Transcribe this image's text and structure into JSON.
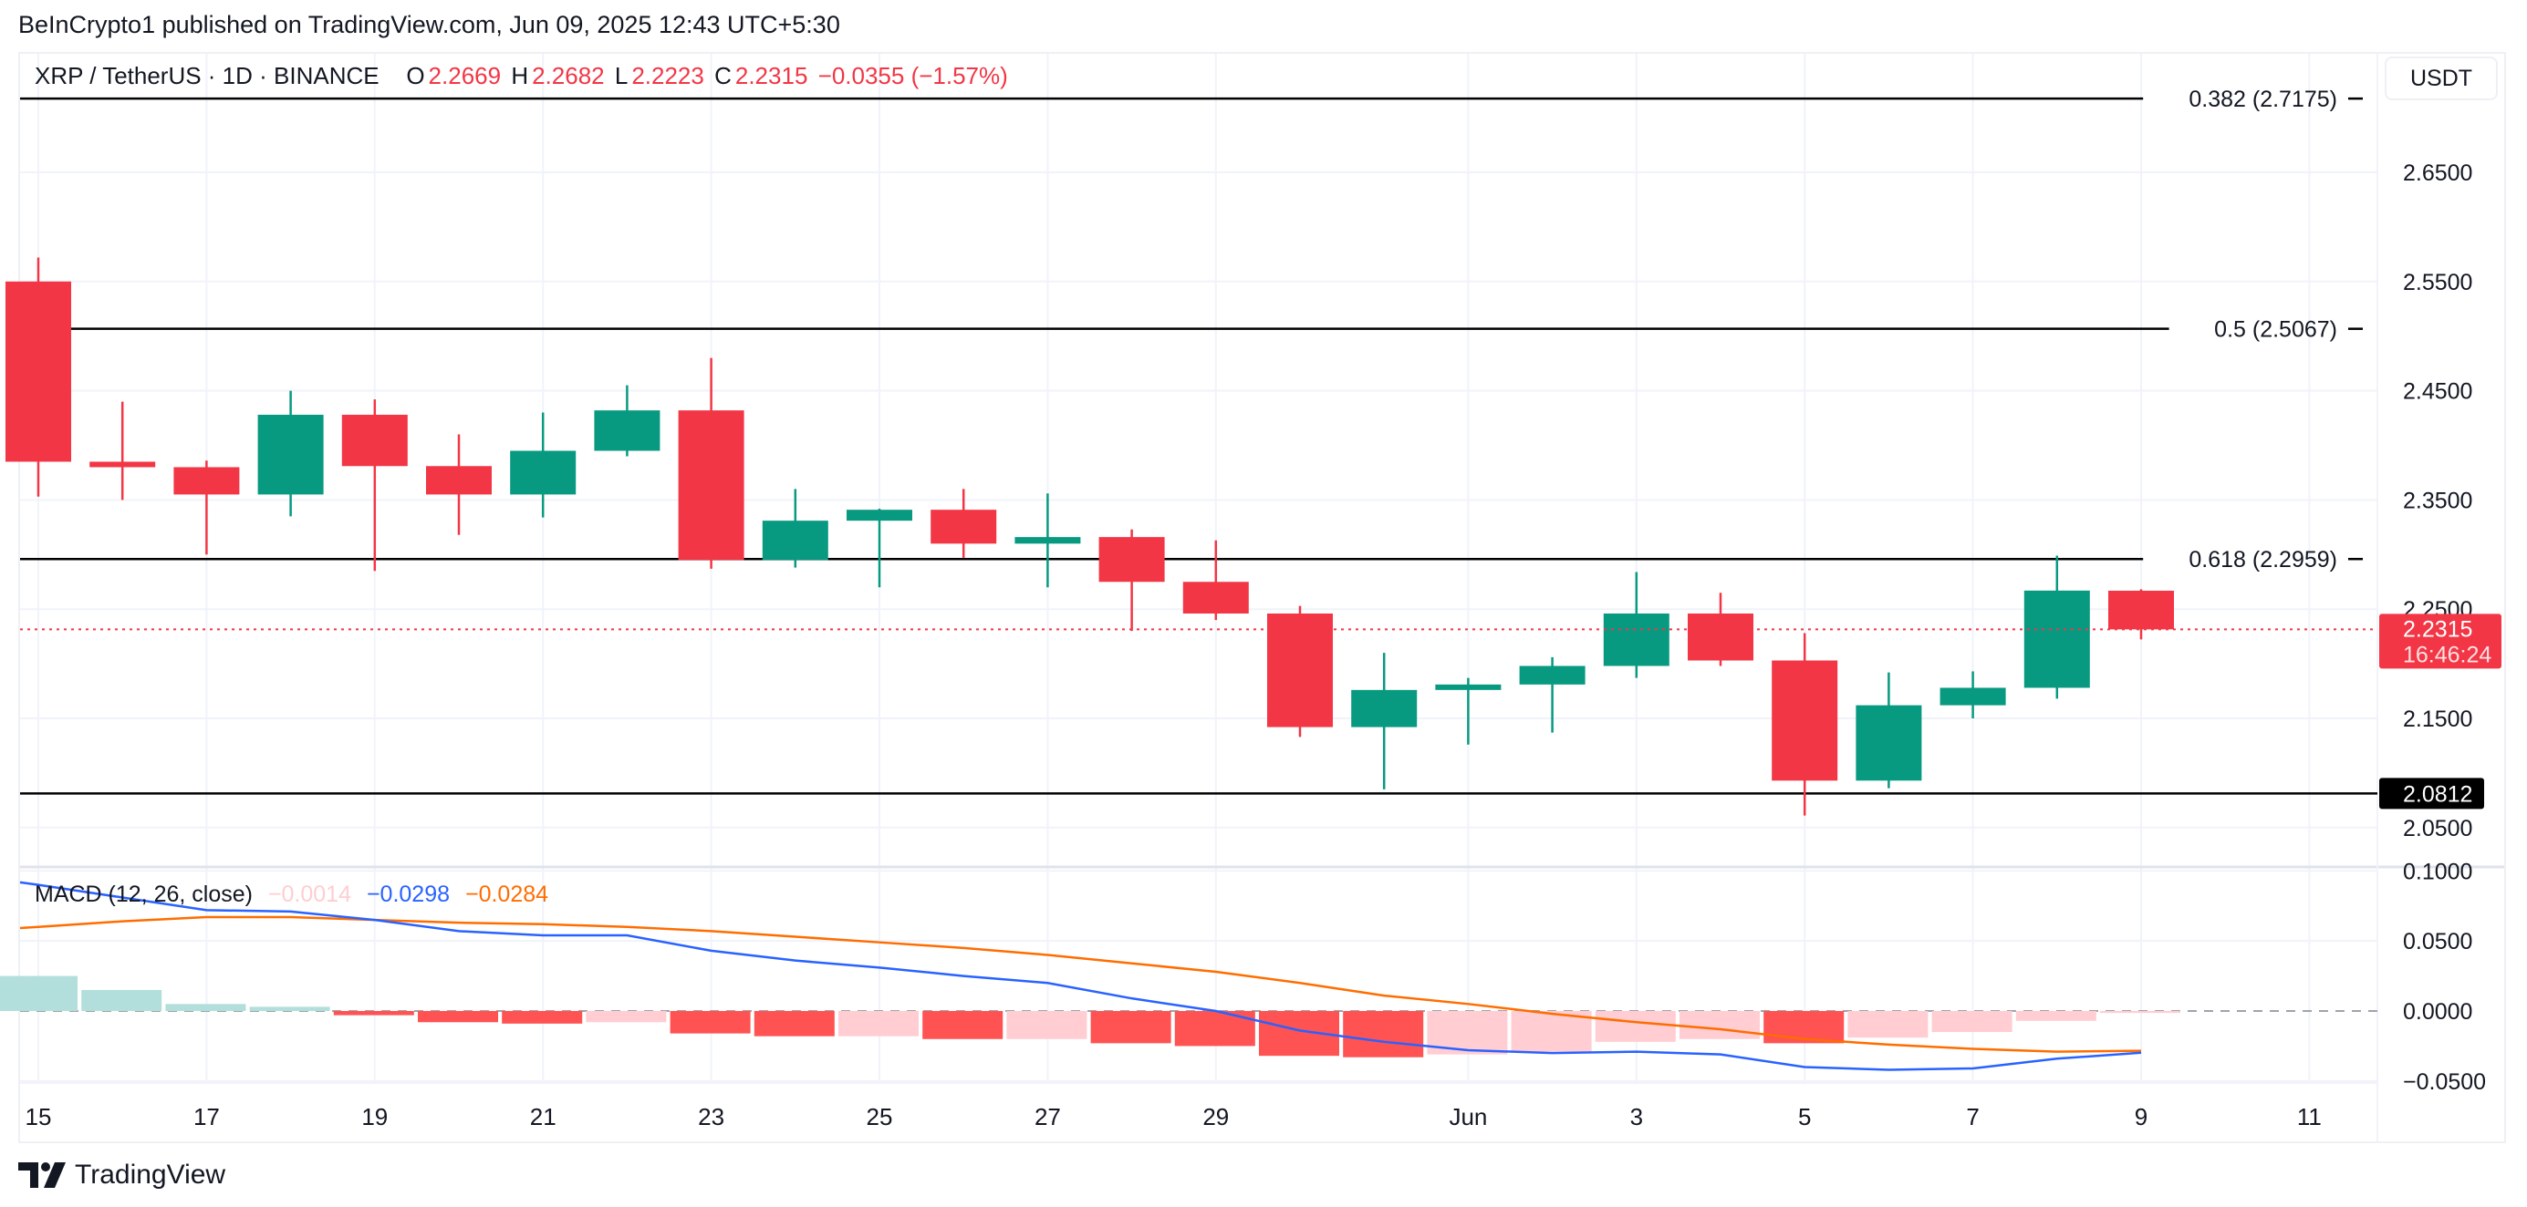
{
  "header": {
    "published": "BeInCrypto1 published on TradingView.com, Jun 09, 2025 12:43 UTC+5:30"
  },
  "legend": {
    "symbol": "XRP / TetherUS · 1D · BINANCE",
    "o_label": "O",
    "o": "2.2669",
    "h_label": "H",
    "h": "2.2682",
    "l_label": "L",
    "l": "2.2223",
    "c_label": "C",
    "c": "2.2315",
    "change": "−0.0355 (−1.57%)"
  },
  "currency_button": "USDT",
  "current_price": {
    "value": "2.2315",
    "countdown": "16:46:24"
  },
  "macd_legend": {
    "title": "MACD (12, 26, close)",
    "hist": "−0.0014",
    "macd": "−0.0298",
    "signal": "−0.0284"
  },
  "brand": {
    "name": "TradingView"
  },
  "colors": {
    "up": "#089981",
    "down": "#f23645",
    "macd": "#2962ff",
    "signal": "#ff6d00",
    "hist_up_fading": "#b2dfdb",
    "hist_down_growing": "#ff5252",
    "hist_down_fading": "#ffcdd2"
  },
  "chart_data": [
    {
      "type": "candlestick",
      "ylim": [
        2.02,
        2.75
      ],
      "y_ticks": [
        "2.6500",
        "2.5500",
        "2.4500",
        "2.3500",
        "2.2500",
        "2.1500",
        "2.0500"
      ],
      "grid": true,
      "x_ticks": [
        {
          "label": "15",
          "date": "2025-05-15"
        },
        {
          "label": "17",
          "date": "2025-05-17"
        },
        {
          "label": "19",
          "date": "2025-05-19"
        },
        {
          "label": "21",
          "date": "2025-05-21"
        },
        {
          "label": "23",
          "date": "2025-05-23"
        },
        {
          "label": "25",
          "date": "2025-05-25"
        },
        {
          "label": "27",
          "date": "2025-05-27"
        },
        {
          "label": "29",
          "date": "2025-05-29"
        },
        {
          "label": "Jun",
          "date": "2025-06-01"
        },
        {
          "label": "3",
          "date": "2025-06-03"
        },
        {
          "label": "5",
          "date": "2025-06-05"
        },
        {
          "label": "7",
          "date": "2025-06-07"
        },
        {
          "label": "9",
          "date": "2025-06-09"
        },
        {
          "label": "11",
          "date": "2025-06-11"
        }
      ],
      "candles": [
        {
          "date": "2025-05-15",
          "o": 2.55,
          "h": 2.572,
          "l": 2.353,
          "c": 2.385
        },
        {
          "date": "2025-05-16",
          "o": 2.385,
          "h": 2.44,
          "l": 2.35,
          "c": 2.38
        },
        {
          "date": "2025-05-17",
          "o": 2.38,
          "h": 2.386,
          "l": 2.3,
          "c": 2.355
        },
        {
          "date": "2025-05-18",
          "o": 2.355,
          "h": 2.45,
          "l": 2.335,
          "c": 2.428
        },
        {
          "date": "2025-05-19",
          "o": 2.428,
          "h": 2.442,
          "l": 2.285,
          "c": 2.381
        },
        {
          "date": "2025-05-20",
          "o": 2.381,
          "h": 2.41,
          "l": 2.318,
          "c": 2.355
        },
        {
          "date": "2025-05-21",
          "o": 2.355,
          "h": 2.43,
          "l": 2.334,
          "c": 2.395
        },
        {
          "date": "2025-05-22",
          "o": 2.395,
          "h": 2.455,
          "l": 2.39,
          "c": 2.432
        },
        {
          "date": "2025-05-23",
          "o": 2.432,
          "h": 2.48,
          "l": 2.287,
          "c": 2.295
        },
        {
          "date": "2025-05-24",
          "o": 2.295,
          "h": 2.36,
          "l": 2.288,
          "c": 2.331
        },
        {
          "date": "2025-05-25",
          "o": 2.331,
          "h": 2.342,
          "l": 2.27,
          "c": 2.341
        },
        {
          "date": "2025-05-26",
          "o": 2.341,
          "h": 2.36,
          "l": 2.297,
          "c": 2.31
        },
        {
          "date": "2025-05-27",
          "o": 2.31,
          "h": 2.356,
          "l": 2.27,
          "c": 2.316
        },
        {
          "date": "2025-05-28",
          "o": 2.316,
          "h": 2.323,
          "l": 2.23,
          "c": 2.275
        },
        {
          "date": "2025-05-29",
          "o": 2.275,
          "h": 2.313,
          "l": 2.24,
          "c": 2.246
        },
        {
          "date": "2025-05-30",
          "o": 2.246,
          "h": 2.253,
          "l": 2.133,
          "c": 2.142
        },
        {
          "date": "2025-05-31",
          "o": 2.142,
          "h": 2.21,
          "l": 2.085,
          "c": 2.176
        },
        {
          "date": "2025-06-01",
          "o": 2.176,
          "h": 2.187,
          "l": 2.126,
          "c": 2.181
        },
        {
          "date": "2025-06-02",
          "o": 2.181,
          "h": 2.206,
          "l": 2.137,
          "c": 2.198
        },
        {
          "date": "2025-06-03",
          "o": 2.198,
          "h": 2.284,
          "l": 2.187,
          "c": 2.246
        },
        {
          "date": "2025-06-04",
          "o": 2.246,
          "h": 2.265,
          "l": 2.198,
          "c": 2.203
        },
        {
          "date": "2025-06-05",
          "o": 2.203,
          "h": 2.228,
          "l": 2.061,
          "c": 2.093
        },
        {
          "date": "2025-06-06",
          "o": 2.093,
          "h": 2.192,
          "l": 2.086,
          "c": 2.162
        },
        {
          "date": "2025-06-07",
          "o": 2.162,
          "h": 2.193,
          "l": 2.15,
          "c": 2.178
        },
        {
          "date": "2025-06-08",
          "o": 2.178,
          "h": 2.299,
          "l": 2.168,
          "c": 2.267
        },
        {
          "date": "2025-06-09",
          "o": 2.2669,
          "h": 2.2682,
          "l": 2.2223,
          "c": 2.2315
        }
      ],
      "levels": [
        {
          "label": "0.382 (2.7175)",
          "price": 2.7175
        },
        {
          "label": "0.5 (2.5067)",
          "price": 2.5067
        },
        {
          "label": "0.618 (2.2959)",
          "price": 2.2959
        },
        {
          "label": "2.0812",
          "price": 2.0812,
          "axis_label": true
        }
      ]
    },
    {
      "type": "macd",
      "title": "MACD (12, 26, close)",
      "ylim": [
        -0.06,
        0.105
      ],
      "y_ticks": [
        "0.1000",
        "0.0500",
        "0.0000",
        "−0.0500"
      ],
      "dates": [
        "2025-05-15",
        "2025-05-16",
        "2025-05-17",
        "2025-05-18",
        "2025-05-19",
        "2025-05-20",
        "2025-05-21",
        "2025-05-22",
        "2025-05-23",
        "2025-05-24",
        "2025-05-25",
        "2025-05-26",
        "2025-05-27",
        "2025-05-28",
        "2025-05-29",
        "2025-05-30",
        "2025-05-31",
        "2025-06-01",
        "2025-06-02",
        "2025-06-03",
        "2025-06-04",
        "2025-06-05",
        "2025-06-06",
        "2025-06-07",
        "2025-06-08",
        "2025-06-09"
      ],
      "histogram": [
        0.025,
        0.015,
        0.005,
        0.003,
        -0.003,
        -0.008,
        -0.009,
        -0.008,
        -0.016,
        -0.018,
        -0.018,
        -0.02,
        -0.02,
        -0.023,
        -0.025,
        -0.032,
        -0.033,
        -0.031,
        -0.029,
        -0.022,
        -0.02,
        -0.023,
        -0.019,
        -0.015,
        -0.007,
        -0.0014
      ],
      "macd": [
        0.09,
        0.081,
        0.072,
        0.071,
        0.065,
        0.057,
        0.054,
        0.054,
        0.043,
        0.036,
        0.031,
        0.025,
        0.02,
        0.009,
        0.0,
        -0.014,
        -0.022,
        -0.028,
        -0.03,
        -0.029,
        -0.031,
        -0.04,
        -0.042,
        -0.041,
        -0.034,
        -0.0298
      ],
      "signal": [
        0.06,
        0.064,
        0.067,
        0.067,
        0.065,
        0.063,
        0.062,
        0.06,
        0.057,
        0.053,
        0.049,
        0.045,
        0.04,
        0.034,
        0.028,
        0.02,
        0.011,
        0.005,
        -0.002,
        -0.008,
        -0.013,
        -0.02,
        -0.024,
        -0.027,
        -0.029,
        -0.0284
      ]
    }
  ]
}
